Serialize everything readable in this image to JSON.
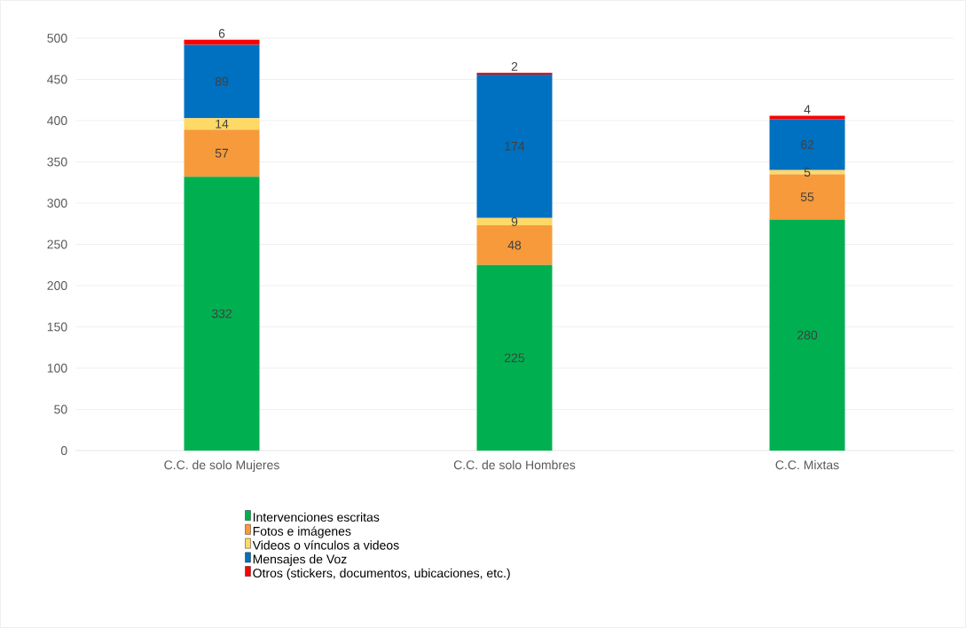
{
  "chart_data": {
    "type": "bar",
    "stacked": true,
    "categories": [
      "C.C. de solo Mujeres",
      "C.C. de solo Hombres",
      "C.C. Mixtas"
    ],
    "series": [
      {
        "name": "Intervenciones escritas",
        "color": "#00b050",
        "values": [
          332,
          225,
          280
        ]
      },
      {
        "name": "Fotos e imágenes",
        "color": "#f79a3b",
        "values": [
          57,
          48,
          55
        ]
      },
      {
        "name": "Videos o vínculos a videos",
        "color": "#ffd966",
        "values": [
          14,
          9,
          5
        ]
      },
      {
        "name": "Mensajes de Voz",
        "color": "#0070c0",
        "values": [
          89,
          174,
          62
        ]
      },
      {
        "name": "Otros (stickers, documentos, ubicaciones, etc.)",
        "color": "#ff0000",
        "values": [
          6,
          2,
          4
        ]
      }
    ],
    "ylim": [
      0,
      500
    ],
    "yticks": [
      0,
      50,
      100,
      150,
      200,
      250,
      300,
      350,
      400,
      450,
      500
    ],
    "grid": "y",
    "legend": "bottom",
    "data_labels": true
  }
}
